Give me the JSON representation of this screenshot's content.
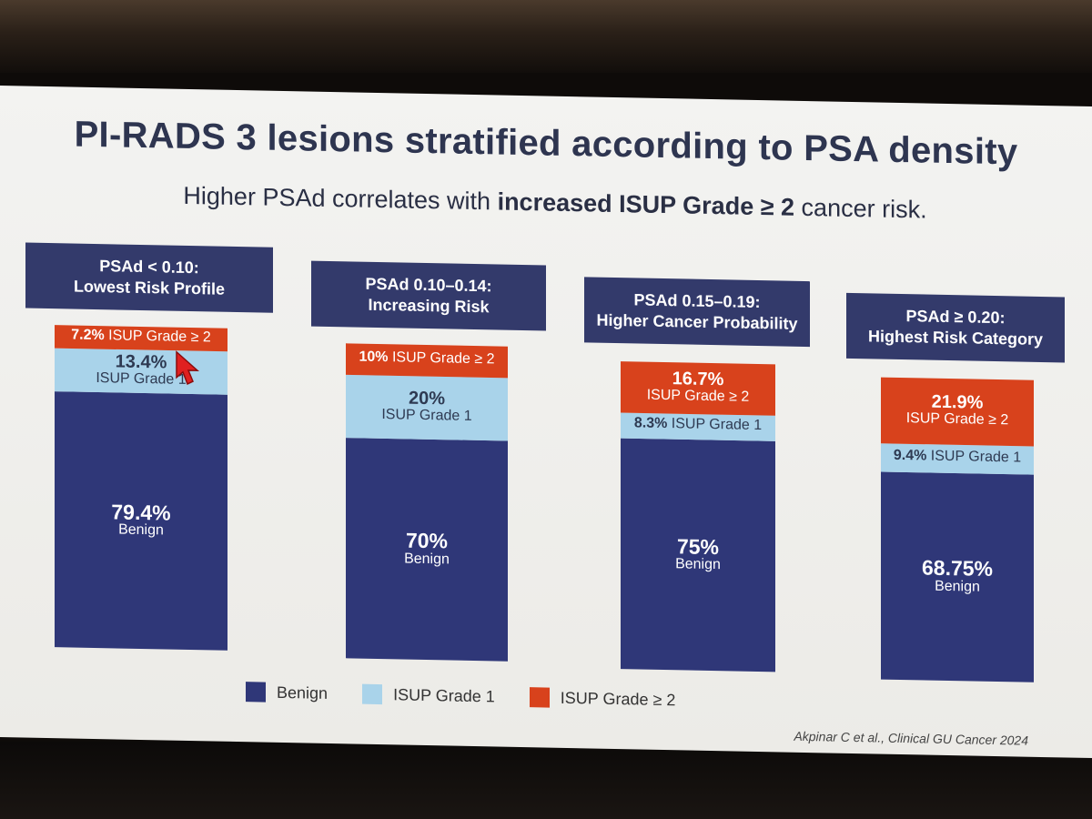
{
  "title": "PI-RADS 3 lesions stratified according to PSA density",
  "subtitle": {
    "prefix": "Higher PSAd correlates with ",
    "bold": "increased ISUP Grade ≥ 2",
    "suffix": " cancer risk."
  },
  "colors": {
    "benign": "#2f3778",
    "isup1": "#a9d3ea",
    "isup2": "#d8421c",
    "header": "#333a6b"
  },
  "chart_data": {
    "type": "bar",
    "stacked": true,
    "normalized_percent": true,
    "title": "PI-RADS 3 lesions stratified according to PSA density",
    "categories": [
      {
        "line1": "PSAd < 0.10:",
        "line2": "Lowest Risk Profile"
      },
      {
        "line1": "PSAd 0.10–0.14:",
        "line2": "Increasing Risk"
      },
      {
        "line1": "PSAd 0.15–0.19:",
        "line2": "Higher Cancer Probability"
      },
      {
        "line1": "PSAd ≥ 0.20:",
        "line2": "Highest Risk Category"
      }
    ],
    "series": [
      {
        "name": "Benign",
        "values": [
          79.4,
          70,
          75,
          68.75
        ],
        "value_labels": [
          "79.4%",
          "70%",
          "75%",
          "68.75%"
        ],
        "segment_label": "Benign"
      },
      {
        "name": "ISUP Grade 1",
        "values": [
          13.4,
          20,
          8.3,
          9.4
        ],
        "value_labels": [
          "13.4%",
          "20%",
          "8.3%",
          "9.4%"
        ],
        "segment_label": "ISUP Grade 1"
      },
      {
        "name": "ISUP Grade ≥ 2",
        "values": [
          7.2,
          10,
          16.7,
          21.9
        ],
        "value_labels": [
          "7.2%",
          "10%",
          "16.7%",
          "21.9%"
        ],
        "segment_label": "ISUP Grade ≥ 2"
      }
    ],
    "legend": [
      "Benign",
      "ISUP Grade 1",
      "ISUP Grade ≥ 2"
    ],
    "legend_position": "bottom",
    "xlabel": "",
    "ylabel": ""
  },
  "citation": "Akpinar C et al., Clinical GU Cancer 2024"
}
